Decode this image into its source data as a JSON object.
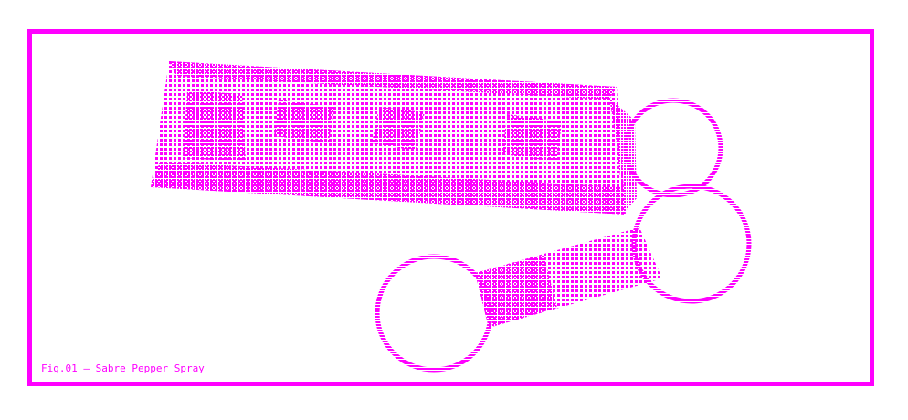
{
  "figure": {
    "caption": "Fig.01 — Sabre Pepper Spray",
    "accent_color": "#ff00ff",
    "background_color": "#ffffff",
    "style": "dithered-pixel-illustration"
  }
}
